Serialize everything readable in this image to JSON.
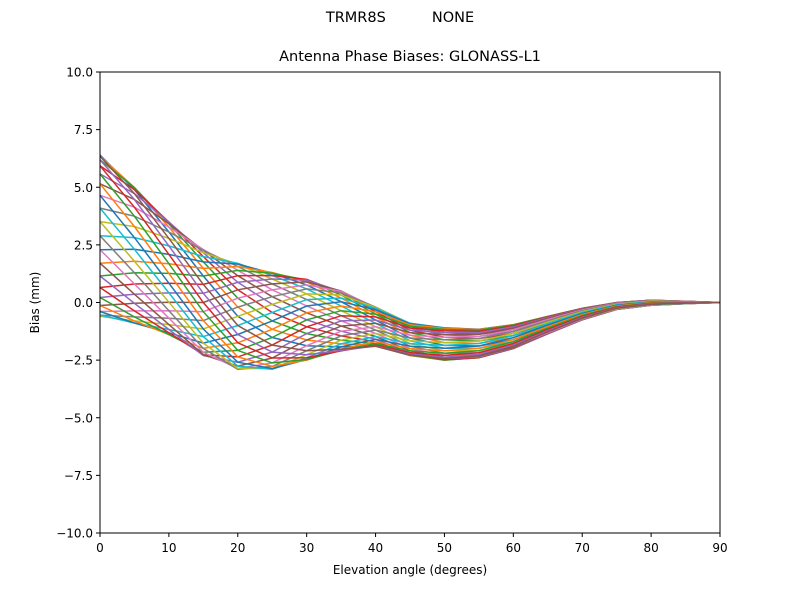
{
  "figure": {
    "suptitle": "TRMR8S          NONE",
    "title": "Antenna Phase Biases: GLONASS-L1"
  },
  "chart_data": {
    "type": "line",
    "title": "Antenna Phase Biases: GLONASS-L1",
    "suptitle": "TRMR8S          NONE",
    "xlabel": "Elevation angle (degrees)",
    "ylabel": "Bias (mm)",
    "xlim": [
      0,
      90
    ],
    "ylim": [
      -10,
      10
    ],
    "xticks": [
      0,
      10,
      20,
      30,
      40,
      50,
      60,
      70,
      80,
      90
    ],
    "xtick_labels": [
      "0",
      "10",
      "20",
      "30",
      "40",
      "50",
      "60",
      "70",
      "80",
      "90"
    ],
    "yticks": [
      10,
      7.5,
      5,
      2.5,
      0,
      -2.5,
      -5,
      -7.5,
      -10
    ],
    "ytick_labels": [
      "10.0",
      "7.5",
      "5.0",
      "2.5",
      "0.0",
      "−2.5",
      "−5.0",
      "−7.5",
      "−10.0"
    ],
    "grid": false,
    "legend": "none",
    "x": [
      0,
      5,
      10,
      15,
      20,
      25,
      30,
      35,
      40,
      45,
      50,
      55,
      60,
      65,
      70,
      75,
      80,
      85,
      90
    ],
    "envelope_upper": [
      6.4,
      5.0,
      3.5,
      2.3,
      1.7,
      1.3,
      1.0,
      0.5,
      -0.2,
      -0.9,
      -1.1,
      -1.15,
      -0.95,
      -0.6,
      -0.25,
      0.0,
      0.1,
      0.05,
      0.0
    ],
    "envelope_lower": [
      -0.6,
      -0.9,
      -1.4,
      -2.3,
      -2.9,
      -2.9,
      -2.5,
      -2.1,
      -1.9,
      -2.3,
      -2.5,
      -2.4,
      -2.0,
      -1.35,
      -0.75,
      -0.3,
      -0.12,
      -0.05,
      0.0
    ],
    "series_model": {
      "description": "One curve per azimuth; value = mean + amp*cos(azimuth - phase)",
      "azimuths_deg": [
        0,
        10,
        20,
        30,
        40,
        50,
        60,
        70,
        80,
        90,
        100,
        110,
        120,
        130,
        140,
        150,
        160,
        170,
        180,
        190,
        200,
        210,
        220,
        230,
        240,
        250,
        260,
        270,
        280,
        290,
        300,
        310,
        320,
        330,
        340,
        350
      ],
      "mean": [
        2.9,
        2.05,
        1.05,
        0.0,
        -0.6,
        -0.8,
        -0.75,
        -0.8,
        -1.05,
        -1.6,
        -1.8,
        -1.78,
        -1.48,
        -0.98,
        -0.5,
        -0.15,
        -0.01,
        0.0,
        0.0
      ],
      "amplitude": [
        3.5,
        2.95,
        2.45,
        2.3,
        2.3,
        2.1,
        1.75,
        1.3,
        0.85,
        0.7,
        0.7,
        0.62,
        0.52,
        0.38,
        0.25,
        0.15,
        0.11,
        0.05,
        0.0
      ],
      "phase_deg": [
        0,
        15,
        35,
        60,
        90,
        110,
        130,
        150,
        170,
        185,
        195,
        200,
        205,
        210,
        215,
        220,
        225,
        230,
        235
      ]
    },
    "colors": [
      "#1f77b4",
      "#ff7f0e",
      "#2ca02c",
      "#d62728",
      "#9467bd",
      "#8c564b",
      "#e377c2",
      "#7f7f7f",
      "#bcbd22",
      "#17becf"
    ]
  }
}
